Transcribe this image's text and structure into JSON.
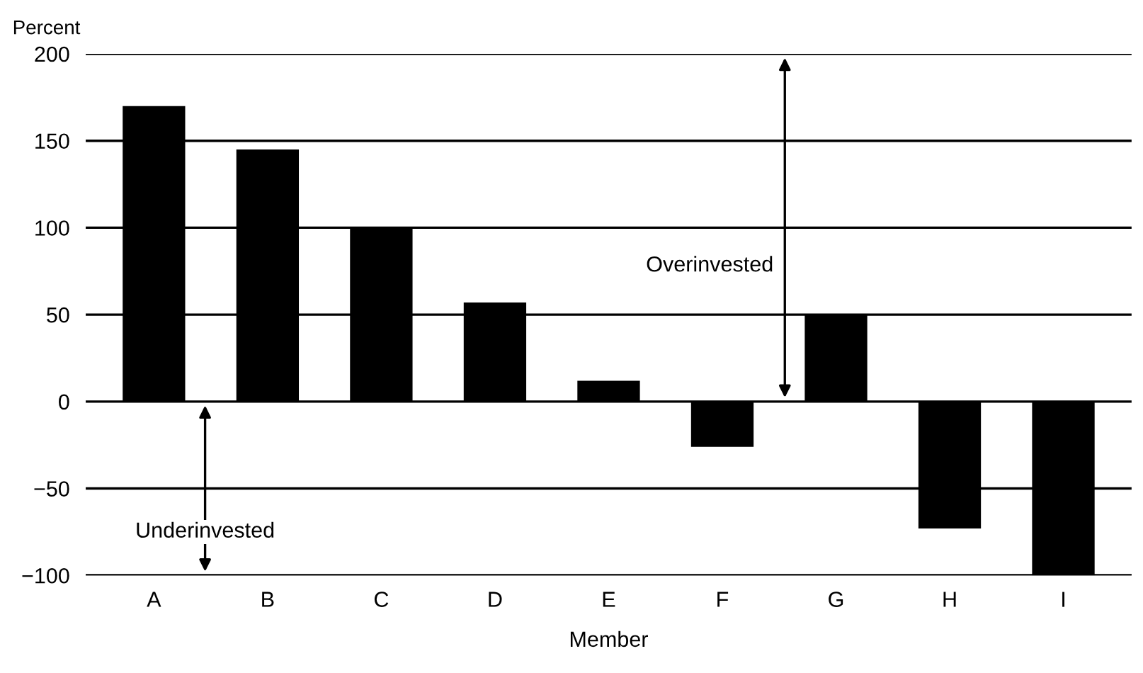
{
  "chart_data": {
    "type": "bar",
    "xlabel": "Member",
    "ylabel": "Percent",
    "categories": [
      "A",
      "B",
      "C",
      "D",
      "E",
      "F",
      "G",
      "H",
      "I"
    ],
    "values": [
      170,
      145,
      100,
      57,
      12,
      -26,
      50,
      -73,
      -100
    ],
    "color": "#000000",
    "ylim": [
      -100,
      200
    ],
    "yticks": [
      {
        "value": -100,
        "label": "−100"
      },
      {
        "value": -50,
        "label": "−50"
      },
      0,
      50,
      100,
      150,
      200
    ],
    "grid": "y",
    "annotations": [
      "Overinvested",
      "Underinvested"
    ]
  }
}
